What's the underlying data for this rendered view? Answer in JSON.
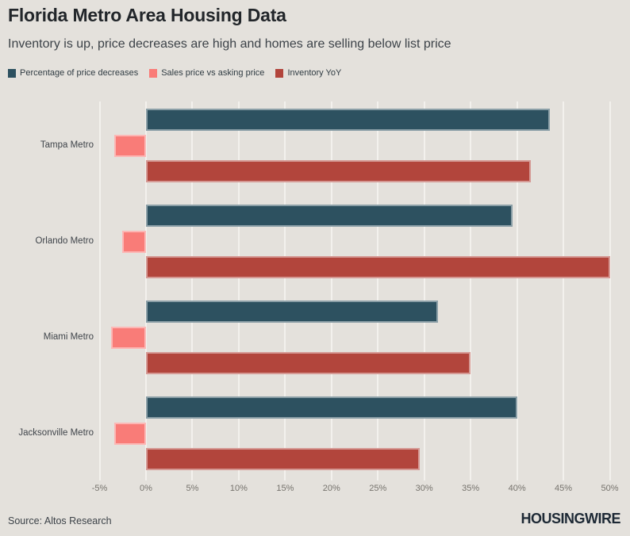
{
  "header": {
    "title": "Florida Metro Area Housing Data",
    "subtitle": "Inventory is up, price decreases are high and homes are selling below list price"
  },
  "chart_data": {
    "type": "bar",
    "orientation": "horizontal",
    "title": "Florida Metro Area Housing Data",
    "subtitle": "Inventory is up, price decreases are high and homes are selling below list price",
    "categories": [
      "Tampa Metro",
      "Orlando Metro",
      "Miami Metro",
      "Jacksonville Metro"
    ],
    "series": [
      {
        "name": "Percentage of price decreases",
        "color": "#2d5160",
        "values": [
          43.5,
          39.5,
          31.5,
          40
        ]
      },
      {
        "name": "Sales price vs asking price",
        "color": "#f97c78",
        "values": [
          -3.4,
          -2.6,
          -3.8,
          -3.4
        ]
      },
      {
        "name": "Inventory YoY",
        "color": "#b2453c",
        "values": [
          41.5,
          50,
          35,
          29.5
        ]
      }
    ],
    "xlabel": "",
    "ylabel": "",
    "x_ticks": [
      -5,
      0,
      5,
      10,
      15,
      20,
      25,
      30,
      35,
      40,
      45,
      50
    ],
    "x_tick_labels": [
      "-5%",
      "0%",
      "5%",
      "10%",
      "15%",
      "20%",
      "25%",
      "30%",
      "35%",
      "40%",
      "45%",
      "50%"
    ],
    "xlim": [
      -6.5,
      51.5
    ],
    "grid": true,
    "legend_position": "top-left"
  },
  "footer": {
    "source": "Source: Altos Research",
    "logo": "HOUSINGWIRE"
  },
  "colors": {
    "background": "#e4e1dc",
    "gridline": "#f3f1ed",
    "title": "#22262a",
    "subtitle": "#3c4248",
    "tick_label": "#76736d",
    "category_label": "#3f444a",
    "bar_stroke": "rgba(255,255,255,0.45)"
  }
}
